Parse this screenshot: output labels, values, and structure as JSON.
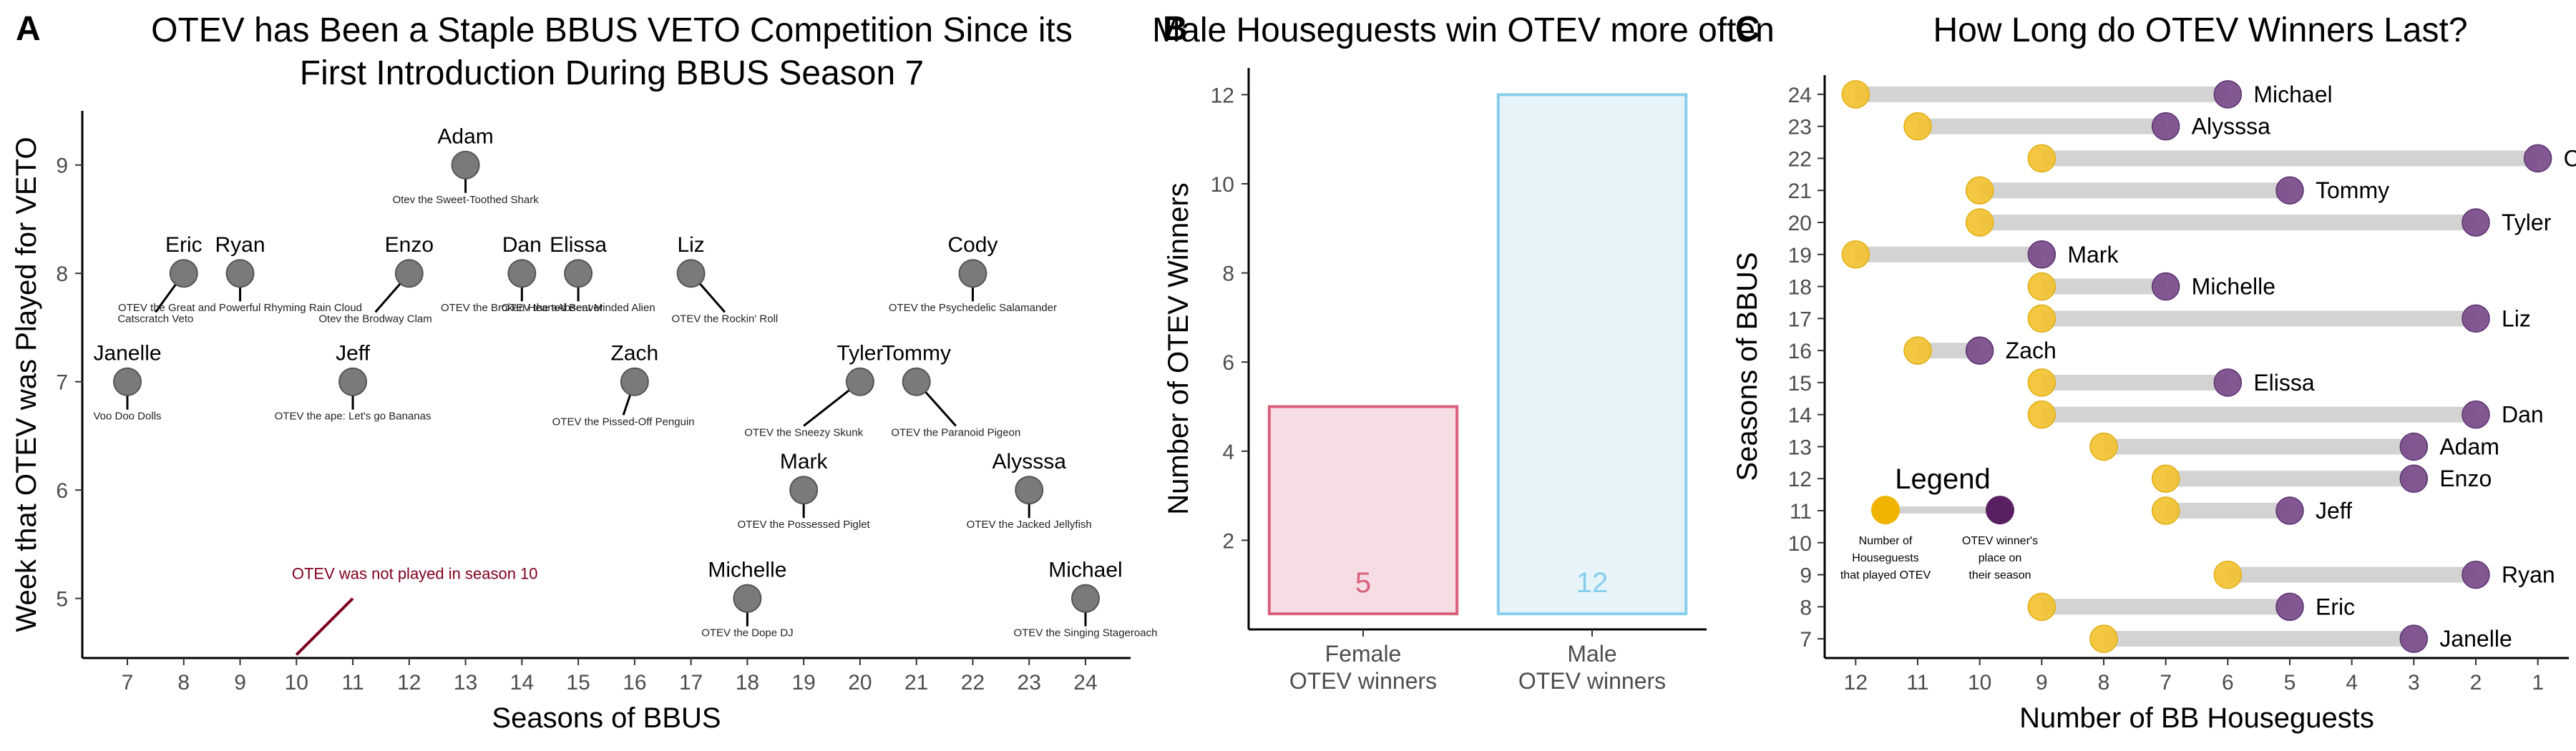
{
  "colors": {
    "point_gray": "#7a7a7a",
    "note_red": "#800020",
    "female_stroke": "#d9607a",
    "female_fill": "#f5dde3",
    "male_stroke": "#87ceeb",
    "male_fill": "#e6f4fa",
    "yellow": "#f2c12e",
    "purple": "#7b4e8c",
    "legend_yellow": "#f0b400",
    "legend_purple": "#5a1f63",
    "segment": "#d3d3d3"
  },
  "panels": [
    {
      "letter": "A",
      "title_line1": "OTEV has Been a Staple BBUS VETO Competition Since its",
      "title_line2": "First Introduction During BBUS Season 7"
    },
    {
      "letter": "B",
      "title_line1": "Male Houseguests win OTEV more often"
    },
    {
      "letter": "C",
      "title_line1": "How Long do OTEV Winners Last?"
    }
  ],
  "annotation": {
    "text": "OTEV was not played in season 10"
  },
  "legend": {
    "title": "Legend",
    "yellow_label": [
      "Number of",
      "Houseguests",
      "that played OTEV"
    ],
    "purple_label": [
      "OTEV winner's",
      "place on",
      "their season"
    ]
  },
  "chart_data": [
    {
      "id": "A",
      "type": "scatter",
      "xlabel": "Seasons of BBUS",
      "ylabel": "Week that OTEV was Played for VETO",
      "xlim": [
        6.2,
        24.8
      ],
      "ylim": [
        4.45,
        9.5
      ],
      "xticks": [
        "7",
        "8",
        "9",
        "10",
        "11",
        "12",
        "13",
        "14",
        "15",
        "16",
        "17",
        "18",
        "19",
        "20",
        "21",
        "22",
        "23",
        "24"
      ],
      "yticks": [
        "5",
        "6",
        "7",
        "8",
        "9"
      ],
      "points": [
        {
          "season": 7,
          "week": 7,
          "winner": "Janelle",
          "comp": "Voo Doo Dolls"
        },
        {
          "season": 8,
          "week": 8,
          "winner": "Eric",
          "comp": "Catscratch Veto"
        },
        {
          "season": 9,
          "week": 8,
          "winner": "Ryan",
          "comp": "OTEV the Great and Powerful Rhyming Rain Cloud"
        },
        {
          "season": 11,
          "week": 7,
          "winner": "Jeff",
          "comp": "OTEV the ape: Let's go Bananas"
        },
        {
          "season": 12,
          "week": 8,
          "winner": "Enzo",
          "comp": "Otev the Brodway Clam"
        },
        {
          "season": 13,
          "week": 9,
          "winner": "Adam",
          "comp": "Otev the Sweet-Toothed Shark"
        },
        {
          "season": 14,
          "week": 8,
          "winner": "Dan",
          "comp": "OTEV the Broken Hearted Beaver"
        },
        {
          "season": 15,
          "week": 8,
          "winner": "Elissa",
          "comp": "OTEV the aAbsent Minded Alien"
        },
        {
          "season": 16,
          "week": 7,
          "winner": "Zach",
          "comp": "OTEV the Pissed-Off Penguin"
        },
        {
          "season": 17,
          "week": 8,
          "winner": "Liz",
          "comp": "OTEV the Rockin' Roll"
        },
        {
          "season": 18,
          "week": 5,
          "winner": "Michelle",
          "comp": "OTEV the Dope DJ"
        },
        {
          "season": 19,
          "week": 6,
          "winner": "Mark",
          "comp": "OTEV the Possessed Piglet"
        },
        {
          "season": 20,
          "week": 7,
          "winner": "Tyler",
          "comp": "OTEV the Sneezy Skunk"
        },
        {
          "season": 21,
          "week": 7,
          "winner": "Tommy",
          "comp": "OTEV the Paranoid Pigeon"
        },
        {
          "season": 22,
          "week": 8,
          "winner": "Cody",
          "comp": "OTEV the Psychedelic Salamander"
        },
        {
          "season": 23,
          "week": 6,
          "winner": "Alysssa",
          "comp": "OTEV the Jacked Jellyfish"
        },
        {
          "season": 24,
          "week": 5,
          "winner": "Michael",
          "comp": "OTEV the Singing Stageroach"
        }
      ]
    },
    {
      "id": "B",
      "type": "bar",
      "categories": [
        "Female OTEV winners",
        "Male OTEV winners"
      ],
      "category_lines": [
        [
          "Female",
          "OTEV winners"
        ],
        [
          "Male",
          "OTEV winners"
        ]
      ],
      "values": [
        5,
        12
      ],
      "value_labels": [
        "5",
        "12"
      ],
      "xlabel": "",
      "ylabel": "Number of OTEV Winners",
      "ylim": [
        0,
        12.6
      ],
      "yticks": [
        "2",
        "4",
        "6",
        "8",
        "10",
        "12"
      ]
    },
    {
      "id": "C",
      "type": "dumbbell",
      "xlabel": "Number of BB Houseguests",
      "ylabel": "Seasons of BBUS",
      "x_reversed": true,
      "xlim": [
        12.5,
        0.5
      ],
      "ylim": [
        6.4,
        24.6
      ],
      "xticks": [
        "12",
        "11",
        "10",
        "9",
        "8",
        "7",
        "6",
        "5",
        "4",
        "3",
        "2",
        "1"
      ],
      "yticks": [
        "7",
        "8",
        "9",
        "10",
        "11",
        "12",
        "13",
        "14",
        "15",
        "16",
        "17",
        "18",
        "19",
        "20",
        "21",
        "22",
        "23",
        "24"
      ],
      "rows": [
        {
          "season": 24,
          "played": 12,
          "place": 6,
          "winner": "Michael"
        },
        {
          "season": 23,
          "played": 11,
          "place": 7,
          "winner": "Alysssa"
        },
        {
          "season": 22,
          "played": 9,
          "place": 1,
          "winner": "Cody"
        },
        {
          "season": 21,
          "played": 10,
          "place": 5,
          "winner": "Tommy"
        },
        {
          "season": 20,
          "played": 10,
          "place": 2,
          "winner": "Tyler"
        },
        {
          "season": 19,
          "played": 12,
          "place": 9,
          "winner": "Mark"
        },
        {
          "season": 18,
          "played": 9,
          "place": 7,
          "winner": "Michelle"
        },
        {
          "season": 17,
          "played": 9,
          "place": 2,
          "winner": "Liz"
        },
        {
          "season": 16,
          "played": 11,
          "place": 10,
          "winner": "Zach"
        },
        {
          "season": 15,
          "played": 9,
          "place": 6,
          "winner": "Elissa"
        },
        {
          "season": 14,
          "played": 9,
          "place": 2,
          "winner": "Dan"
        },
        {
          "season": 13,
          "played": 8,
          "place": 3,
          "winner": "Adam"
        },
        {
          "season": 12,
          "played": 7,
          "place": 3,
          "winner": "Enzo"
        },
        {
          "season": 11,
          "played": 7,
          "place": 5,
          "winner": "Jeff"
        },
        {
          "season": 9,
          "played": 6,
          "place": 2,
          "winner": "Ryan"
        },
        {
          "season": 8,
          "played": 9,
          "place": 5,
          "winner": "Eric"
        },
        {
          "season": 7,
          "played": 8,
          "place": 3,
          "winner": "Janelle"
        }
      ]
    }
  ]
}
